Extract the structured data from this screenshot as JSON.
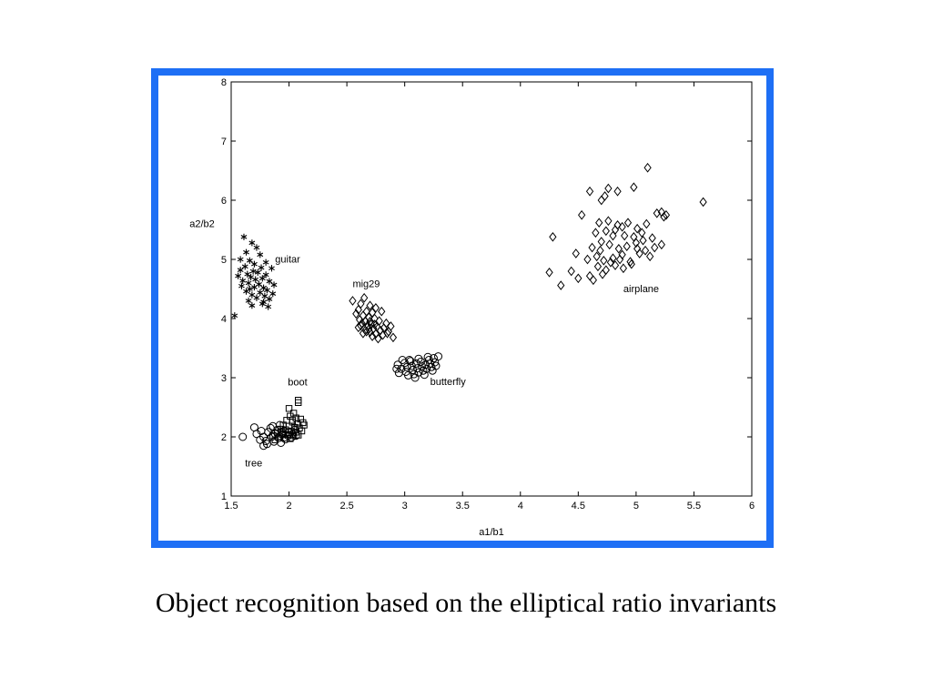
{
  "caption": "Object recognition based on the elliptical ratio invariants",
  "colors": {
    "frame_border": "#1e6ff5",
    "marker": "#000000"
  },
  "chart_data": {
    "type": "scatter",
    "xlabel": "a1/b1",
    "ylabel": "a2/b2",
    "xlim": [
      1.5,
      6
    ],
    "ylim": [
      1,
      8
    ],
    "xticks": [
      1.5,
      2,
      2.5,
      3,
      3.5,
      4,
      4.5,
      5,
      5.5,
      6
    ],
    "yticks": [
      1,
      2,
      3,
      4,
      5,
      6,
      7,
      8
    ],
    "grid": false,
    "series": [
      {
        "name": "guitar",
        "marker": "asterisk",
        "label_pos": [
          1.88,
          4.95
        ],
        "points": [
          [
            1.61,
            5.38
          ],
          [
            1.68,
            5.28
          ],
          [
            1.72,
            5.2
          ],
          [
            1.63,
            5.12
          ],
          [
            1.75,
            5.08
          ],
          [
            1.58,
            5.0
          ],
          [
            1.66,
            4.98
          ],
          [
            1.8,
            4.95
          ],
          [
            1.7,
            4.92
          ],
          [
            1.62,
            4.88
          ],
          [
            1.76,
            4.86
          ],
          [
            1.85,
            4.85
          ],
          [
            1.58,
            4.82
          ],
          [
            1.69,
            4.8
          ],
          [
            1.73,
            4.78
          ],
          [
            1.64,
            4.75
          ],
          [
            1.8,
            4.74
          ],
          [
            1.56,
            4.72
          ],
          [
            1.67,
            4.7
          ],
          [
            1.77,
            4.68
          ],
          [
            1.71,
            4.66
          ],
          [
            1.6,
            4.64
          ],
          [
            1.83,
            4.63
          ],
          [
            1.65,
            4.6
          ],
          [
            1.74,
            4.58
          ],
          [
            1.87,
            4.57
          ],
          [
            1.59,
            4.55
          ],
          [
            1.7,
            4.53
          ],
          [
            1.78,
            4.52
          ],
          [
            1.66,
            4.5
          ],
          [
            1.81,
            4.48
          ],
          [
            1.63,
            4.46
          ],
          [
            1.75,
            4.44
          ],
          [
            1.86,
            4.42
          ],
          [
            1.68,
            4.4
          ],
          [
            1.79,
            4.38
          ],
          [
            1.72,
            4.35
          ],
          [
            1.83,
            4.33
          ],
          [
            1.65,
            4.3
          ],
          [
            1.78,
            4.28
          ],
          [
            1.68,
            4.22
          ],
          [
            1.77,
            4.25
          ],
          [
            1.82,
            4.2
          ],
          [
            1.53,
            4.05
          ]
        ]
      },
      {
        "name": "mig29",
        "marker": "diamond",
        "label_pos": [
          2.55,
          4.53
        ],
        "points": [
          [
            2.55,
            4.3
          ],
          [
            2.65,
            4.35
          ],
          [
            2.62,
            4.25
          ],
          [
            2.7,
            4.22
          ],
          [
            2.6,
            4.15
          ],
          [
            2.75,
            4.18
          ],
          [
            2.67,
            4.12
          ],
          [
            2.58,
            4.08
          ],
          [
            2.72,
            4.1
          ],
          [
            2.64,
            4.05
          ],
          [
            2.8,
            4.12
          ],
          [
            2.69,
            4.02
          ],
          [
            2.61,
            3.98
          ],
          [
            2.74,
            4.0
          ],
          [
            2.66,
            3.95
          ],
          [
            2.78,
            3.96
          ],
          [
            2.63,
            3.92
          ],
          [
            2.71,
            3.9
          ],
          [
            2.84,
            3.92
          ],
          [
            2.68,
            3.88
          ],
          [
            2.76,
            3.86
          ],
          [
            2.6,
            3.85
          ],
          [
            2.73,
            3.83
          ],
          [
            2.82,
            3.84
          ],
          [
            2.66,
            3.8
          ],
          [
            2.79,
            3.8
          ],
          [
            2.7,
            3.77
          ],
          [
            2.86,
            3.78
          ],
          [
            2.75,
            3.74
          ],
          [
            2.64,
            3.75
          ],
          [
            2.81,
            3.72
          ],
          [
            2.72,
            3.7
          ],
          [
            2.77,
            3.66
          ],
          [
            2.9,
            3.68
          ],
          [
            2.85,
            3.75
          ],
          [
            2.67,
            3.78
          ],
          [
            2.62,
            3.88
          ],
          [
            2.7,
            3.95
          ],
          [
            2.74,
            3.9
          ],
          [
            2.69,
            3.82
          ],
          [
            2.88,
            3.87
          ]
        ]
      },
      {
        "name": "butterfly",
        "marker": "circle",
        "label_pos": [
          3.22,
          2.88
        ],
        "points": [
          [
            2.94,
            3.22
          ],
          [
            2.97,
            3.15
          ],
          [
            2.95,
            3.08
          ],
          [
            3.0,
            3.25
          ],
          [
            3.02,
            3.18
          ],
          [
            3.01,
            3.1
          ],
          [
            3.03,
            3.04
          ],
          [
            3.05,
            3.28
          ],
          [
            3.06,
            3.2
          ],
          [
            3.07,
            3.13
          ],
          [
            3.08,
            3.06
          ],
          [
            3.1,
            3.24
          ],
          [
            3.11,
            3.16
          ],
          [
            3.12,
            3.09
          ],
          [
            3.14,
            3.27
          ],
          [
            3.15,
            3.19
          ],
          [
            3.16,
            3.12
          ],
          [
            3.18,
            3.22
          ],
          [
            3.19,
            3.15
          ],
          [
            3.21,
            3.3
          ],
          [
            3.22,
            3.24
          ],
          [
            3.23,
            3.18
          ],
          [
            3.25,
            3.33
          ],
          [
            3.26,
            3.26
          ],
          [
            3.27,
            3.2
          ],
          [
            3.29,
            3.36
          ],
          [
            3.2,
            3.35
          ],
          [
            3.12,
            3.32
          ],
          [
            3.04,
            3.3
          ],
          [
            2.98,
            3.3
          ],
          [
            3.09,
            3.0
          ],
          [
            2.93,
            3.15
          ],
          [
            3.17,
            3.05
          ],
          [
            3.24,
            3.12
          ]
        ]
      },
      {
        "name": "boot",
        "marker": "square",
        "label_pos": [
          1.99,
          2.87
        ],
        "points": [
          [
            2.08,
            2.62
          ],
          [
            2.08,
            2.58
          ],
          [
            2.0,
            2.48
          ],
          [
            2.04,
            2.4
          ],
          [
            2.01,
            2.35
          ],
          [
            2.06,
            2.32
          ],
          [
            2.1,
            2.3
          ],
          [
            1.98,
            2.28
          ],
          [
            2.03,
            2.25
          ],
          [
            2.07,
            2.22
          ],
          [
            2.12,
            2.24
          ],
          [
            1.95,
            2.2
          ],
          [
            2.0,
            2.18
          ],
          [
            2.05,
            2.16
          ],
          [
            2.09,
            2.15
          ],
          [
            1.93,
            2.13
          ],
          [
            1.97,
            2.12
          ],
          [
            2.02,
            2.1
          ],
          [
            2.06,
            2.08
          ],
          [
            2.11,
            2.1
          ],
          [
            1.9,
            2.07
          ],
          [
            1.95,
            2.05
          ],
          [
            1.99,
            2.04
          ],
          [
            2.04,
            2.02
          ],
          [
            2.08,
            2.03
          ],
          [
            1.92,
            2.0
          ],
          [
            1.96,
            1.98
          ],
          [
            2.01,
            1.97
          ],
          [
            1.88,
            1.95
          ],
          [
            2.13,
            2.2
          ],
          [
            1.86,
            2.02
          ],
          [
            1.94,
            2.08
          ],
          [
            2.03,
            2.28
          ]
        ]
      },
      {
        "name": "tree",
        "marker": "circle",
        "label_pos": [
          1.62,
          1.5
        ],
        "points": [
          [
            1.6,
            2.0
          ],
          [
            1.7,
            2.16
          ],
          [
            1.72,
            2.05
          ],
          [
            1.76,
            2.1
          ],
          [
            1.78,
            2.0
          ],
          [
            1.8,
            1.93
          ],
          [
            1.82,
            2.08
          ],
          [
            1.84,
            2.15
          ],
          [
            1.85,
            2.0
          ],
          [
            1.87,
            1.92
          ],
          [
            1.88,
            2.05
          ],
          [
            1.9,
            2.12
          ],
          [
            1.91,
            1.98
          ],
          [
            1.93,
            1.9
          ],
          [
            1.94,
            2.04
          ],
          [
            1.96,
            2.1
          ],
          [
            1.97,
            1.96
          ],
          [
            1.99,
            2.02
          ],
          [
            2.0,
            2.08
          ],
          [
            2.02,
            1.99
          ],
          [
            2.03,
            2.05
          ],
          [
            2.05,
            2.12
          ],
          [
            1.78,
            1.85
          ],
          [
            1.81,
            1.88
          ],
          [
            1.86,
            2.18
          ],
          [
            1.92,
            2.2
          ],
          [
            1.75,
            1.95
          ],
          [
            2.06,
            2.02
          ]
        ]
      },
      {
        "name": "airplane",
        "marker": "diamond",
        "label_pos": [
          4.89,
          4.45
        ],
        "points": [
          [
            5.1,
            6.55
          ],
          [
            5.58,
            5.97
          ],
          [
            4.6,
            6.15
          ],
          [
            4.76,
            6.2
          ],
          [
            4.73,
            6.07
          ],
          [
            4.7,
            6.0
          ],
          [
            4.84,
            6.15
          ],
          [
            4.98,
            6.22
          ],
          [
            4.53,
            5.75
          ],
          [
            4.68,
            5.62
          ],
          [
            4.76,
            5.65
          ],
          [
            4.84,
            5.58
          ],
          [
            4.93,
            5.62
          ],
          [
            5.01,
            5.52
          ],
          [
            5.09,
            5.6
          ],
          [
            5.18,
            5.78
          ],
          [
            5.24,
            5.72
          ],
          [
            5.22,
            5.8
          ],
          [
            5.26,
            5.75
          ],
          [
            4.28,
            5.38
          ],
          [
            4.65,
            5.45
          ],
          [
            4.74,
            5.48
          ],
          [
            4.82,
            5.5
          ],
          [
            4.9,
            5.4
          ],
          [
            4.98,
            5.38
          ],
          [
            5.06,
            5.32
          ],
          [
            5.14,
            5.36
          ],
          [
            4.48,
            5.1
          ],
          [
            4.62,
            5.2
          ],
          [
            4.69,
            5.15
          ],
          [
            4.77,
            5.25
          ],
          [
            4.85,
            5.18
          ],
          [
            4.92,
            5.22
          ],
          [
            5.0,
            5.28
          ],
          [
            5.08,
            5.15
          ],
          [
            5.16,
            5.2
          ],
          [
            5.22,
            5.25
          ],
          [
            4.58,
            5.0
          ],
          [
            4.66,
            5.05
          ],
          [
            4.72,
            4.98
          ],
          [
            4.8,
            5.02
          ],
          [
            4.88,
            5.08
          ],
          [
            4.95,
            4.96
          ],
          [
            5.03,
            5.1
          ],
          [
            5.12,
            5.05
          ],
          [
            4.25,
            4.78
          ],
          [
            4.44,
            4.8
          ],
          [
            4.5,
            4.68
          ],
          [
            4.35,
            4.56
          ],
          [
            4.6,
            4.72
          ],
          [
            4.67,
            4.88
          ],
          [
            4.74,
            4.82
          ],
          [
            4.82,
            4.9
          ],
          [
            4.89,
            4.85
          ],
          [
            4.96,
            4.92
          ],
          [
            4.63,
            4.65
          ],
          [
            4.71,
            4.75
          ],
          [
            4.78,
            4.95
          ],
          [
            4.86,
            5.0
          ],
          [
            5.01,
            5.18
          ],
          [
            4.7,
            5.3
          ],
          [
            4.8,
            5.4
          ],
          [
            4.88,
            5.55
          ],
          [
            5.05,
            5.45
          ]
        ]
      }
    ]
  }
}
